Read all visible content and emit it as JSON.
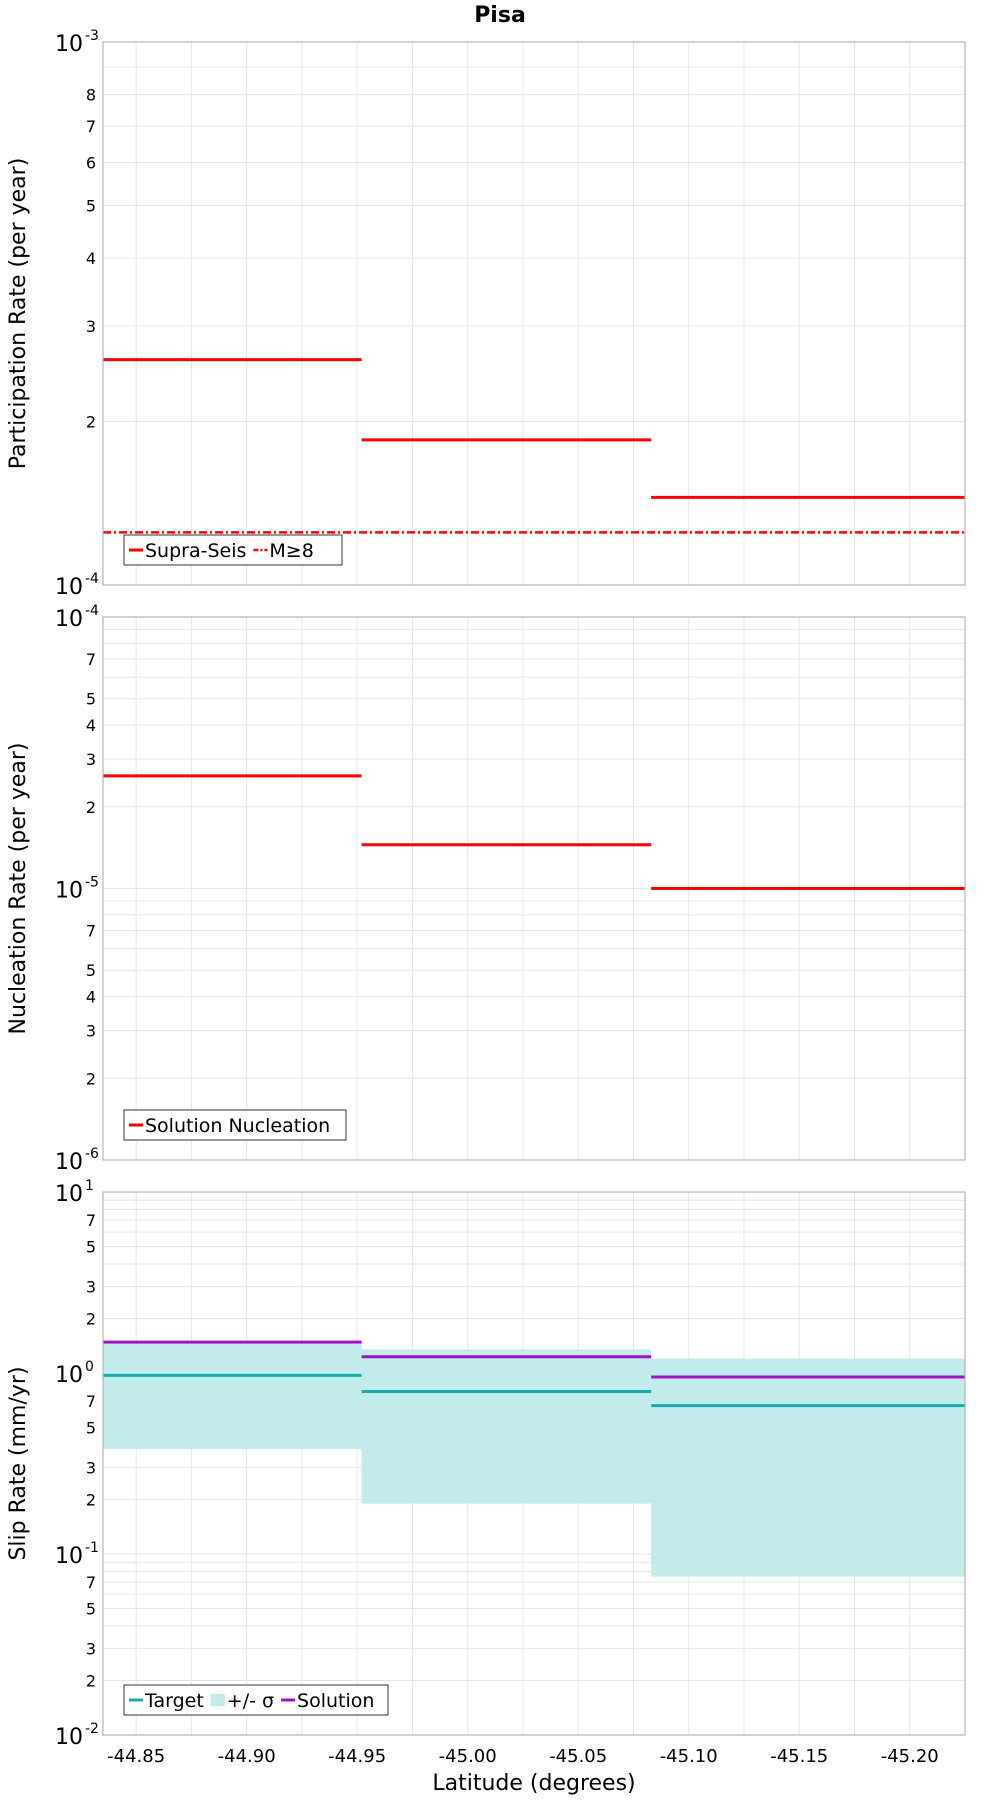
{
  "title": "Pisa",
  "xlabel": "Latitude (degrees)",
  "x_ticks": [
    "-44.85",
    "-44.90",
    "-44.95",
    "-45.00",
    "-45.05",
    "-45.10",
    "-45.15",
    "-45.20"
  ],
  "colors": {
    "red": "#ff0000",
    "teal": "#1aacac",
    "band": "#c2ebeb",
    "purple": "#a012c8",
    "grid": "#e6e6e6",
    "frame": "#b4b4b4"
  },
  "chart_data": [
    {
      "type": "line",
      "ylabel": "Participation Rate (per year)",
      "yscale": "log",
      "ylim": [
        0.0001,
        0.001
      ],
      "xlim": [
        -44.835,
        -45.225
      ],
      "y_minor_labels": [
        "2",
        "3",
        "4",
        "5",
        "6",
        "7",
        "8"
      ],
      "series": [
        {
          "name": "Supra-Seis",
          "style": "solid",
          "segments": [
            {
              "x": [
                -44.835,
                -44.952
              ],
              "y": 0.00026
            },
            {
              "x": [
                -44.952,
                -45.083
              ],
              "y": 0.000185
            },
            {
              "x": [
                -45.083,
                -45.225
              ],
              "y": 0.000145
            }
          ]
        },
        {
          "name": "M≥8",
          "style": "dash-dot",
          "segments": [
            {
              "x": [
                -44.835,
                -45.225
              ],
              "y": 0.000125
            }
          ]
        }
      ],
      "legend": "bottom-left"
    },
    {
      "type": "line",
      "ylabel": "Nucleation Rate (per year)",
      "yscale": "log",
      "ylim": [
        1e-06,
        0.0001
      ],
      "xlim": [
        -44.835,
        -45.225
      ],
      "y_minor_labels": [
        "2",
        "3",
        "4",
        "5",
        "7"
      ],
      "series": [
        {
          "name": "Solution Nucleation",
          "style": "solid",
          "segments": [
            {
              "x": [
                -44.835,
                -44.952
              ],
              "y": 2.6e-05
            },
            {
              "x": [
                -44.952,
                -45.083
              ],
              "y": 1.45e-05
            },
            {
              "x": [
                -45.083,
                -45.225
              ],
              "y": 1e-05
            }
          ]
        }
      ],
      "legend": "bottom-left"
    },
    {
      "type": "line",
      "ylabel": "Slip Rate (mm/yr)",
      "yscale": "log",
      "ylim": [
        0.01,
        10
      ],
      "xlim": [
        -44.835,
        -45.225
      ],
      "y_minor_labels": [
        "2",
        "3",
        "5",
        "7"
      ],
      "series": [
        {
          "name": "Target",
          "style": "solid",
          "segments": [
            {
              "x": [
                -44.835,
                -44.952
              ],
              "y": 0.97
            },
            {
              "x": [
                -44.952,
                -45.083
              ],
              "y": 0.79
            },
            {
              "x": [
                -45.083,
                -45.225
              ],
              "y": 0.66
            }
          ]
        },
        {
          "name": "+/- σ",
          "style": "band",
          "segments": [
            {
              "x": [
                -44.835,
                -44.952
              ],
              "y": [
                0.38,
                1.45
              ]
            },
            {
              "x": [
                -44.952,
                -45.083
              ],
              "y": [
                0.19,
                1.35
              ]
            },
            {
              "x": [
                -45.083,
                -45.225
              ],
              "y": [
                0.075,
                1.2
              ]
            }
          ]
        },
        {
          "name": "Solution",
          "style": "solid",
          "segments": [
            {
              "x": [
                -44.835,
                -44.952
              ],
              "y": 1.48
            },
            {
              "x": [
                -44.952,
                -45.083
              ],
              "y": 1.23
            },
            {
              "x": [
                -45.083,
                -45.225
              ],
              "y": 0.95
            }
          ]
        }
      ],
      "legend": "bottom-left"
    }
  ]
}
